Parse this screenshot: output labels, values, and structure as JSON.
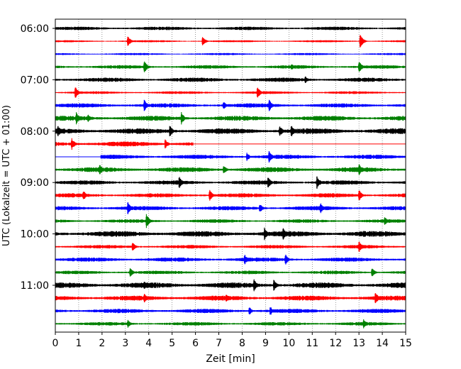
{
  "chart_data": {
    "type": "line",
    "title": "",
    "xlabel": "Zeit  [min]",
    "ylabel": "UTC (Lokalzeit = UTC + 01:00)",
    "xlim": [
      0,
      15
    ],
    "x_ticks": [
      "0",
      "1",
      "2",
      "3",
      "4",
      "5",
      "6",
      "7",
      "8",
      "9",
      "10",
      "11",
      "12",
      "13",
      "14",
      "15"
    ],
    "y_ticks": [
      "06:00",
      "07:00",
      "08:00",
      "09:00",
      "10:00",
      "11:00"
    ],
    "grid": "vertical dotted",
    "trace_interval_min": 15,
    "trace_colors": [
      "#000000",
      "#ff0000",
      "#0000ff",
      "#008000"
    ],
    "traces": [
      {
        "start": "06:00",
        "color": "#000000",
        "amp": 2.5,
        "events": []
      },
      {
        "start": "06:15",
        "color": "#ff0000",
        "amp": 1.5,
        "events": [
          {
            "t": 3.1,
            "a": 8
          },
          {
            "t": 6.3,
            "a": 7
          },
          {
            "t": 13.05,
            "a": 10
          }
        ]
      },
      {
        "start": "06:30",
        "color": "#0000ff",
        "amp": 1.5,
        "events": []
      },
      {
        "start": "06:45",
        "color": "#008000",
        "amp": 2.5,
        "events": [
          {
            "t": 3.8,
            "a": 10
          },
          {
            "t": 10.1,
            "a": 5
          },
          {
            "t": 13.0,
            "a": 9
          }
        ]
      },
      {
        "start": "07:00",
        "color": "#000000",
        "amp": 3.0,
        "events": [
          {
            "t": 10.7,
            "a": 5
          }
        ]
      },
      {
        "start": "07:15",
        "color": "#ff0000",
        "amp": 2.0,
        "events": [
          {
            "t": 0.85,
            "a": 9
          },
          {
            "t": 8.65,
            "a": 9
          }
        ]
      },
      {
        "start": "07:30",
        "color": "#0000ff",
        "amp": 3.0,
        "events": [
          {
            "t": 3.8,
            "a": 9
          },
          {
            "t": 7.2,
            "a": 6
          },
          {
            "t": 9.15,
            "a": 9
          }
        ]
      },
      {
        "start": "07:45",
        "color": "#008000",
        "amp": 3.5,
        "events": [
          {
            "t": 0.9,
            "a": 9
          },
          {
            "t": 1.4,
            "a": 6
          },
          {
            "t": 5.4,
            "a": 9
          }
        ]
      },
      {
        "start": "08:00",
        "color": "#000000",
        "amp": 4.0,
        "events": [
          {
            "t": 0.1,
            "a": 9
          },
          {
            "t": 4.9,
            "a": 9
          },
          {
            "t": 9.6,
            "a": 9
          },
          {
            "t": 10.1,
            "a": 9
          }
        ]
      },
      {
        "start": "08:15",
        "color": "#ff0000",
        "amp": 3.5,
        "events": [
          {
            "t": 0.7,
            "a": 9
          },
          {
            "t": 4.7,
            "a": 7
          }
        ],
        "end": 5.9
      },
      {
        "start": "08:30",
        "color": "#0000ff",
        "amp": 3.0,
        "events": [
          {
            "t": 8.2,
            "a": 6
          },
          {
            "t": 9.15,
            "a": 9
          }
        ],
        "begin": 1.95
      },
      {
        "start": "08:45",
        "color": "#008000",
        "amp": 3.5,
        "events": [
          {
            "t": 1.9,
            "a": 8
          },
          {
            "t": 7.2,
            "a": 7
          },
          {
            "t": 13.0,
            "a": 9
          }
        ]
      },
      {
        "start": "09:00",
        "color": "#000000",
        "amp": 3.0,
        "events": [
          {
            "t": 5.3,
            "a": 9
          },
          {
            "t": 9.1,
            "a": 9
          },
          {
            "t": 11.2,
            "a": 10
          }
        ]
      },
      {
        "start": "09:15",
        "color": "#ff0000",
        "amp": 3.0,
        "events": [
          {
            "t": 1.2,
            "a": 8
          },
          {
            "t": 6.6,
            "a": 9
          },
          {
            "t": 13.0,
            "a": 8
          }
        ]
      },
      {
        "start": "09:30",
        "color": "#0000ff",
        "amp": 3.0,
        "events": [
          {
            "t": 3.1,
            "a": 9
          },
          {
            "t": 8.75,
            "a": 7
          },
          {
            "t": 11.35,
            "a": 8
          }
        ]
      },
      {
        "start": "09:45",
        "color": "#008000",
        "amp": 2.5,
        "events": [
          {
            "t": 3.9,
            "a": 10
          },
          {
            "t": 14.1,
            "a": 7
          }
        ]
      },
      {
        "start": "10:00",
        "color": "#000000",
        "amp": 4.0,
        "events": [
          {
            "t": 8.95,
            "a": 9
          },
          {
            "t": 9.75,
            "a": 9
          },
          {
            "t": 13.2,
            "a": 6
          }
        ]
      },
      {
        "start": "10:15",
        "color": "#ff0000",
        "amp": 2.5,
        "events": [
          {
            "t": 3.3,
            "a": 7
          },
          {
            "t": 13.0,
            "a": 9
          }
        ]
      },
      {
        "start": "10:30",
        "color": "#0000ff",
        "amp": 3.0,
        "events": [
          {
            "t": 8.1,
            "a": 8
          },
          {
            "t": 9.85,
            "a": 8
          }
        ]
      },
      {
        "start": "10:45",
        "color": "#008000",
        "amp": 2.5,
        "events": [
          {
            "t": 3.2,
            "a": 7
          },
          {
            "t": 13.55,
            "a": 7
          }
        ]
      },
      {
        "start": "11:00",
        "color": "#000000",
        "amp": 4.0,
        "events": [
          {
            "t": 3.8,
            "a": 6
          },
          {
            "t": 8.5,
            "a": 9
          },
          {
            "t": 9.35,
            "a": 9
          }
        ]
      },
      {
        "start": "11:15",
        "color": "#ff0000",
        "amp": 3.5,
        "events": [
          {
            "t": 3.8,
            "a": 7
          },
          {
            "t": 7.3,
            "a": 6
          },
          {
            "t": 13.7,
            "a": 9
          }
        ]
      },
      {
        "start": "11:30",
        "color": "#0000ff",
        "amp": 3.0,
        "events": [
          {
            "t": 8.3,
            "a": 6
          },
          {
            "t": 9.2,
            "a": 7
          }
        ]
      },
      {
        "start": "11:45",
        "color": "#008000",
        "amp": 2.5,
        "events": [
          {
            "t": 3.1,
            "a": 6
          },
          {
            "t": 13.2,
            "a": 7
          }
        ]
      }
    ]
  }
}
